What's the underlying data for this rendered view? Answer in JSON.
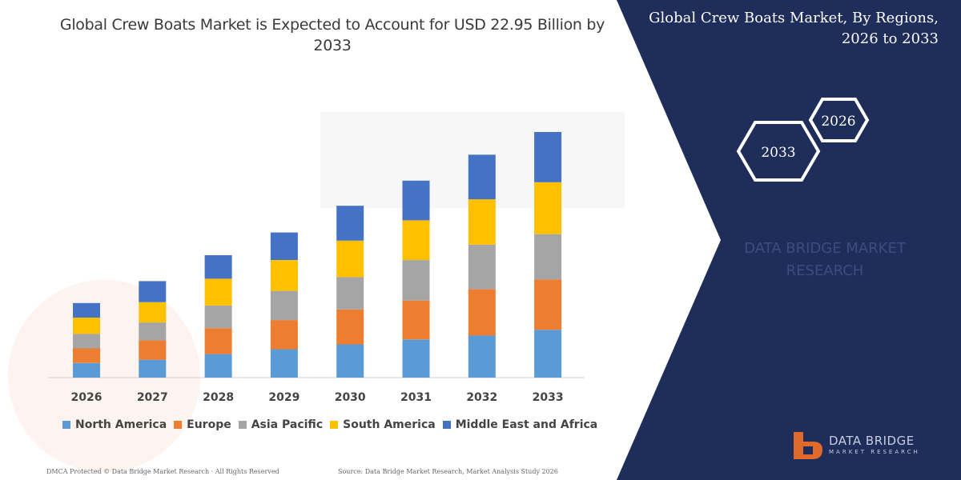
{
  "header": {
    "title": "Global Crew Boats Market is Expected to Account for USD 22.95 Billion by 2033"
  },
  "side_panel": {
    "title_line1": "Global Crew Boats Market, By Regions,",
    "title_line2": "2026 to 2033",
    "hex_upper": "2026",
    "hex_lower": "2033",
    "watermark_line1": "DATA BRIDGE MARKET",
    "watermark_line2": "RESEARCH",
    "background_color": "#1e2d5a"
  },
  "chart_data": {
    "type": "bar",
    "stacked": true,
    "categories": [
      "2026",
      "2027",
      "2028",
      "2029",
      "2030",
      "2031",
      "2032",
      "2033"
    ],
    "series": [
      {
        "name": "North America",
        "color": "#5b9bd5",
        "values": [
          18,
          22,
          29,
          35,
          41,
          47,
          52,
          59
        ]
      },
      {
        "name": "Europe",
        "color": "#ed7d31",
        "values": [
          18,
          24,
          32,
          36,
          43,
          48,
          57,
          62
        ]
      },
      {
        "name": "Asia Pacific",
        "color": "#a5a5a5",
        "values": [
          18,
          22,
          28,
          36,
          40,
          50,
          55,
          56
        ]
      },
      {
        "name": "South America",
        "color": "#ffc000",
        "values": [
          20,
          25,
          33,
          38,
          45,
          49,
          56,
          64
        ]
      },
      {
        "name": "Middle East and Africa",
        "color": "#4472c4",
        "values": [
          18,
          26,
          29,
          34,
          43,
          49,
          55,
          62
        ]
      }
    ],
    "legend_position": "bottom",
    "grid": false
  },
  "footer": {
    "left": "DMCA Protected © Data Bridge Market Research · All Rights Reserved",
    "right": "Source: Data Bridge Market Research, Market Analysis Study 2026"
  },
  "logo": {
    "line1": "DATA BRIDGE",
    "line2": "MARKET RESEARCH"
  }
}
